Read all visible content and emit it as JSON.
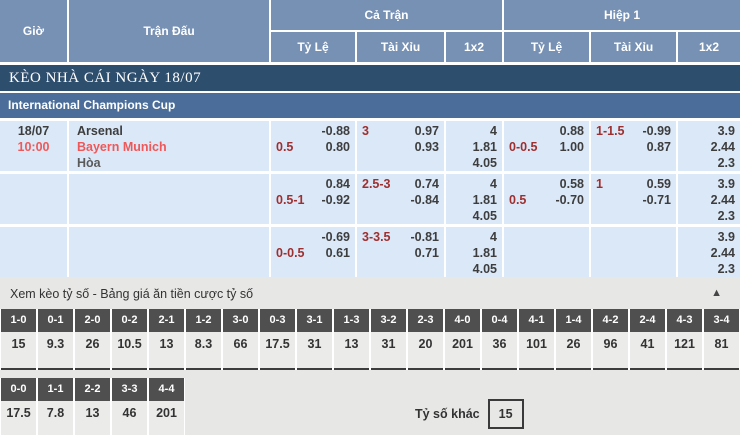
{
  "header": {
    "col_time": "Giờ",
    "col_match": "Trận Đấu",
    "group_full": "Cả Trận",
    "group_half": "Hiệp 1",
    "sub_hdp": "Tỷ Lệ",
    "sub_ou": "Tài Xỉu",
    "sub_1x2": "1x2"
  },
  "title_bar": "KÈO NHÀ CÁI NGÀY 18/07",
  "league_bar": "International Champions Cup",
  "match": {
    "date": "18/07",
    "time": "10:00",
    "home": "Arsenal",
    "away": "Bayern Munich",
    "draw": "Hòa"
  },
  "odds_rows": [
    {
      "ft": {
        "hdp": {
          "line": "0.5",
          "top": "-0.88",
          "bottom": "0.80"
        },
        "ou": {
          "line": "3",
          "top": "0.97",
          "bottom": "0.93"
        },
        "x12": [
          "4",
          "1.81",
          "4.05"
        ]
      },
      "h1": {
        "hdp": {
          "line": "0-0.5",
          "top": "0.88",
          "bottom": "1.00"
        },
        "ou": {
          "line": "1-1.5",
          "top": "-0.99",
          "bottom": "0.87"
        },
        "x12": [
          "3.9",
          "2.44",
          "2.3"
        ]
      }
    },
    {
      "ft": {
        "hdp": {
          "line": "0.5-1",
          "top": "0.84",
          "bottom": "-0.92"
        },
        "ou": {
          "line": "2.5-3",
          "top": "0.74",
          "bottom": "-0.84"
        },
        "x12": [
          "4",
          "1.81",
          "4.05"
        ]
      },
      "h1": {
        "hdp": {
          "line": "0.5",
          "top": "0.58",
          "bottom": "-0.70"
        },
        "ou": {
          "line": "1",
          "top": "0.59",
          "bottom": "-0.71"
        },
        "x12": [
          "3.9",
          "2.44",
          "2.3"
        ]
      }
    },
    {
      "ft": {
        "hdp": {
          "line": "0-0.5",
          "top": "-0.69",
          "bottom": "0.61"
        },
        "ou": {
          "line": "3-3.5",
          "top": "-0.81",
          "bottom": "0.71"
        },
        "x12": [
          "4",
          "1.81",
          "4.05"
        ]
      },
      "h1": {
        "x12": [
          "3.9",
          "2.44",
          "2.3"
        ]
      }
    }
  ],
  "score_section": {
    "title": "Xem kèo tỷ số - Bảng giá ăn tiền cược tỷ số",
    "collapse_icon": "▲",
    "row1": [
      {
        "score": "1-0",
        "odds": "15"
      },
      {
        "score": "0-1",
        "odds": "9.3"
      },
      {
        "score": "2-0",
        "odds": "26"
      },
      {
        "score": "0-2",
        "odds": "10.5"
      },
      {
        "score": "2-1",
        "odds": "13"
      },
      {
        "score": "1-2",
        "odds": "8.3"
      },
      {
        "score": "3-0",
        "odds": "66"
      },
      {
        "score": "0-3",
        "odds": "17.5"
      },
      {
        "score": "3-1",
        "odds": "31"
      },
      {
        "score": "1-3",
        "odds": "13"
      },
      {
        "score": "3-2",
        "odds": "31"
      },
      {
        "score": "2-3",
        "odds": "20"
      },
      {
        "score": "4-0",
        "odds": "201"
      },
      {
        "score": "0-4",
        "odds": "36"
      },
      {
        "score": "4-1",
        "odds": "101"
      },
      {
        "score": "1-4",
        "odds": "26"
      },
      {
        "score": "4-2",
        "odds": "96"
      },
      {
        "score": "2-4",
        "odds": "41"
      },
      {
        "score": "4-3",
        "odds": "121"
      },
      {
        "score": "3-4",
        "odds": "81"
      }
    ],
    "row2": [
      {
        "score": "0-0",
        "odds": "17.5"
      },
      {
        "score": "1-1",
        "odds": "7.8"
      },
      {
        "score": "2-2",
        "odds": "13"
      },
      {
        "score": "3-3",
        "odds": "46"
      },
      {
        "score": "4-4",
        "odds": "201"
      }
    ],
    "other_label": "Tỷ số khác",
    "other_value": "15"
  },
  "colors": {
    "header_blue": "#7791b4",
    "title_navy": "#2e4e6e",
    "league_blue": "#4a6d99",
    "row_light_blue": "#dbe8f8",
    "section_gray": "#e7e7e6",
    "score_header_gray": "#4f4f4f",
    "accent_red": "#ef5858",
    "handicap_maroon": "#9e2f2f"
  }
}
